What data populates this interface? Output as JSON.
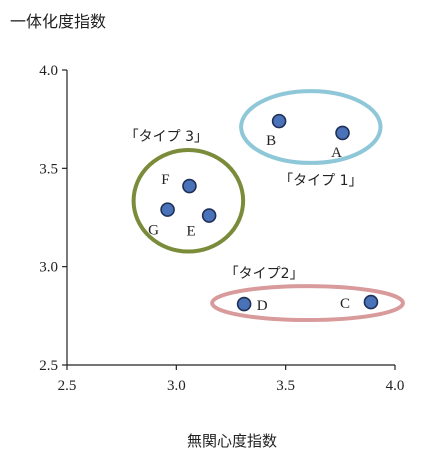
{
  "chart_data": {
    "type": "scatter",
    "ylabel": "一体化度指数",
    "xlabel": "無関心度指数",
    "xlim": [
      2.5,
      4.0
    ],
    "ylim": [
      2.5,
      4.0
    ],
    "xticks": [
      "2.5",
      "3.0",
      "3.5",
      "4.0"
    ],
    "yticks": [
      "2.5",
      "3.0",
      "3.5",
      "4.0"
    ],
    "grid": false,
    "marker_color": "#4a72b8",
    "points": [
      {
        "label": "A",
        "x": 3.76,
        "y": 3.68
      },
      {
        "label": "B",
        "x": 3.47,
        "y": 3.74
      },
      {
        "label": "C",
        "x": 3.89,
        "y": 2.82
      },
      {
        "label": "D",
        "x": 3.31,
        "y": 2.81
      },
      {
        "label": "E",
        "x": 3.15,
        "y": 3.26
      },
      {
        "label": "F",
        "x": 3.06,
        "y": 3.41
      },
      {
        "label": "G",
        "x": 2.96,
        "y": 3.29
      }
    ],
    "groups": [
      {
        "label": "「タイプ 1」",
        "members": [
          "A",
          "B"
        ],
        "color": "#8ec7d8"
      },
      {
        "label": "「タイプ2」",
        "members": [
          "C",
          "D"
        ],
        "color": "#d89a9a"
      },
      {
        "label": "「タイプ 3」",
        "members": [
          "E",
          "F",
          "G"
        ],
        "color": "#7a8c3a"
      }
    ]
  }
}
